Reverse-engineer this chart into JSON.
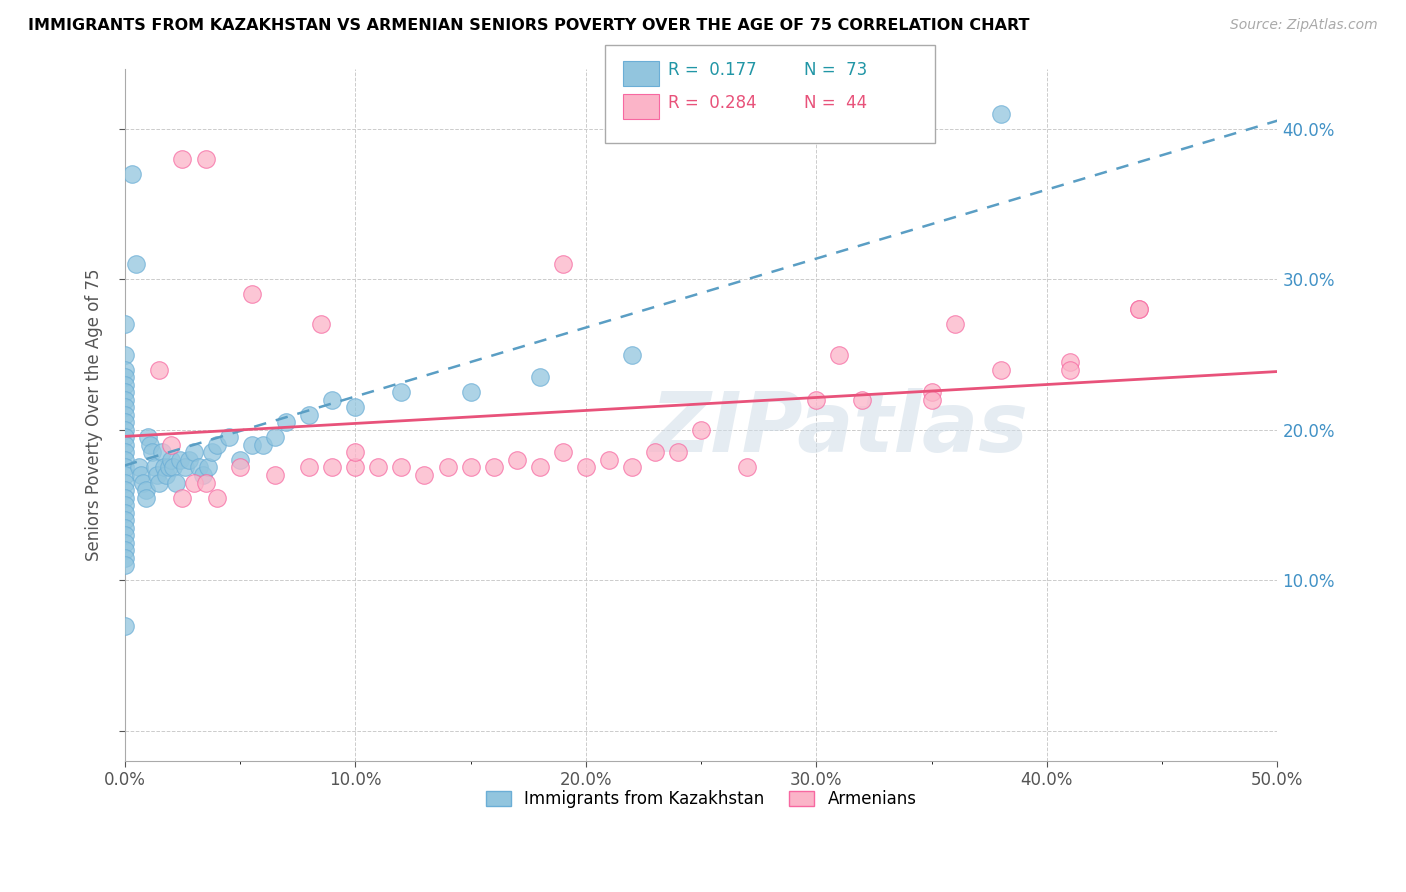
{
  "title": "IMMIGRANTS FROM KAZAKHSTAN VS ARMENIAN SENIORS POVERTY OVER THE AGE OF 75 CORRELATION CHART",
  "source": "Source: ZipAtlas.com",
  "ylabel": "Seniors Poverty Over the Age of 75",
  "x_tick_labels": [
    "0.0%",
    "10.0%",
    "20.0%",
    "30.0%",
    "40.0%",
    "50.0%"
  ],
  "y_tick_labels_right": [
    "10.0%",
    "20.0%",
    "30.0%",
    "40.0%"
  ],
  "xlim": [
    0.0,
    0.5
  ],
  "ylim": [
    -0.02,
    0.44
  ],
  "blue_color": "#92c5de",
  "blue_edge_color": "#6baed6",
  "pink_color": "#fbb4c8",
  "pink_edge_color": "#f768a1",
  "blue_line_color": "#5a9ec4",
  "pink_line_color": "#e8527a",
  "watermark": "ZIPatlas",
  "legend_label1": "Immigrants from Kazakhstan",
  "legend_label2": "Armenians",
  "blue_scatter_x": [
    0.003,
    0.005,
    0.0,
    0.0,
    0.0,
    0.0,
    0.0,
    0.0,
    0.0,
    0.0,
    0.0,
    0.0,
    0.0,
    0.0,
    0.0,
    0.0,
    0.0,
    0.0,
    0.0,
    0.0,
    0.0,
    0.0,
    0.0,
    0.0,
    0.0,
    0.0,
    0.0,
    0.0,
    0.0,
    0.0,
    0.0,
    0.0,
    0.006,
    0.007,
    0.008,
    0.009,
    0.009,
    0.01,
    0.011,
    0.012,
    0.013,
    0.014,
    0.015,
    0.016,
    0.017,
    0.018,
    0.019,
    0.02,
    0.021,
    0.022,
    0.024,
    0.026,
    0.028,
    0.03,
    0.032,
    0.034,
    0.036,
    0.038,
    0.04,
    0.045,
    0.05,
    0.055,
    0.06,
    0.065,
    0.07,
    0.08,
    0.09,
    0.1,
    0.12,
    0.15,
    0.18,
    0.22,
    0.38
  ],
  "blue_scatter_y": [
    0.37,
    0.31,
    0.27,
    0.25,
    0.24,
    0.235,
    0.23,
    0.225,
    0.22,
    0.215,
    0.21,
    0.205,
    0.2,
    0.195,
    0.19,
    0.185,
    0.18,
    0.175,
    0.17,
    0.165,
    0.16,
    0.155,
    0.15,
    0.145,
    0.14,
    0.135,
    0.13,
    0.125,
    0.12,
    0.115,
    0.11,
    0.07,
    0.175,
    0.17,
    0.165,
    0.16,
    0.155,
    0.195,
    0.19,
    0.185,
    0.175,
    0.17,
    0.165,
    0.185,
    0.175,
    0.17,
    0.175,
    0.18,
    0.175,
    0.165,
    0.18,
    0.175,
    0.18,
    0.185,
    0.175,
    0.17,
    0.175,
    0.185,
    0.19,
    0.195,
    0.18,
    0.19,
    0.19,
    0.195,
    0.205,
    0.21,
    0.22,
    0.215,
    0.225,
    0.225,
    0.235,
    0.25,
    0.41
  ],
  "pink_scatter_x": [
    0.025,
    0.035,
    0.055,
    0.085,
    0.015,
    0.02,
    0.025,
    0.03,
    0.035,
    0.04,
    0.05,
    0.065,
    0.08,
    0.09,
    0.1,
    0.11,
    0.12,
    0.13,
    0.14,
    0.15,
    0.16,
    0.17,
    0.18,
    0.19,
    0.2,
    0.21,
    0.22,
    0.23,
    0.24,
    0.25,
    0.27,
    0.3,
    0.32,
    0.35,
    0.38,
    0.41,
    0.44,
    0.19,
    0.31,
    0.35,
    0.36,
    0.41,
    0.44,
    0.1
  ],
  "pink_scatter_y": [
    0.38,
    0.38,
    0.29,
    0.27,
    0.24,
    0.19,
    0.155,
    0.165,
    0.165,
    0.155,
    0.175,
    0.17,
    0.175,
    0.175,
    0.175,
    0.175,
    0.175,
    0.17,
    0.175,
    0.175,
    0.175,
    0.18,
    0.175,
    0.185,
    0.175,
    0.18,
    0.175,
    0.185,
    0.185,
    0.2,
    0.175,
    0.22,
    0.22,
    0.225,
    0.24,
    0.245,
    0.28,
    0.31,
    0.25,
    0.22,
    0.27,
    0.24,
    0.28,
    0.185
  ]
}
